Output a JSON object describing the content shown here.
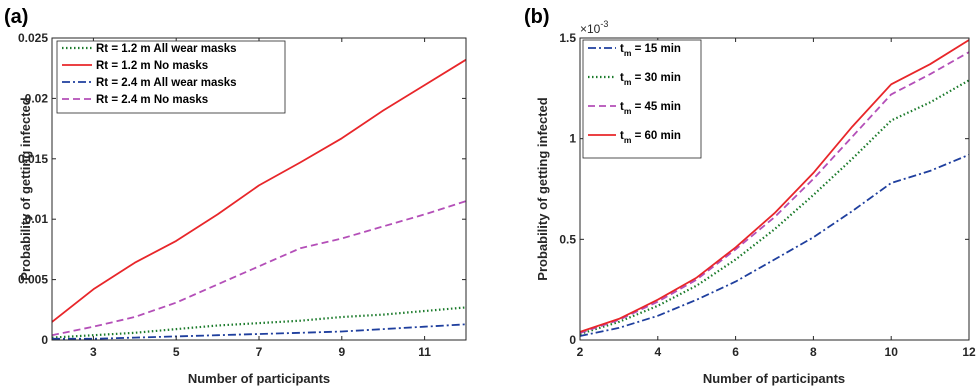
{
  "panels": [
    "(a)",
    "(b)"
  ],
  "chart_data": [
    {
      "type": "line",
      "panel_label": "(a)",
      "xlabel": "Number of participants",
      "ylabel": "Probability of getting infected",
      "xlim": [
        2,
        12
      ],
      "ylim": [
        0,
        0.025
      ],
      "xticks": [
        3,
        5,
        7,
        9,
        11
      ],
      "yticks": [
        0,
        0.005,
        0.01,
        0.015,
        0.02,
        0.025
      ],
      "ytick_labels": [
        "0",
        "0.005",
        "0.01",
        "0.015",
        "0.02",
        "0.025"
      ],
      "legend_position": "top-left",
      "x": [
        2,
        3,
        4,
        5,
        6,
        7,
        8,
        9,
        10,
        11,
        12
      ],
      "series": [
        {
          "name": "Rt = 1.2 m All wear masks",
          "color": "#1a7a2a",
          "style": "dotted",
          "values": [
            0.0002,
            0.0004,
            0.0006,
            0.0009,
            0.0012,
            0.0014,
            0.0016,
            0.0019,
            0.0021,
            0.0024,
            0.0027
          ]
        },
        {
          "name": "Rt = 1.2 m No masks",
          "color": "#e8262a",
          "style": "solid",
          "values": [
            0.0015,
            0.0042,
            0.0064,
            0.0082,
            0.0104,
            0.0128,
            0.0147,
            0.0167,
            0.019,
            0.0211,
            0.0232
          ]
        },
        {
          "name": "Rt = 2.4 m All wear masks",
          "color": "#1f3f9e",
          "style": "dashdot",
          "values": [
            0.0001,
            0.0001,
            0.0002,
            0.0003,
            0.0004,
            0.0005,
            0.0006,
            0.0007,
            0.0009,
            0.0011,
            0.0013
          ]
        },
        {
          "name": "Rt = 2.4 m No masks",
          "color": "#b44fb8",
          "style": "dashed",
          "values": [
            0.0004,
            0.0011,
            0.0019,
            0.0031,
            0.0046,
            0.0061,
            0.0076,
            0.0084,
            0.0094,
            0.0104,
            0.0115
          ]
        }
      ]
    },
    {
      "type": "line",
      "panel_label": "(b)",
      "xlabel": "Number of participants",
      "ylabel": "Probability of getting infected",
      "exponent_label": "×10",
      "exponent_power": "-3",
      "xlim": [
        2,
        12
      ],
      "ylim": [
        0,
        1.5
      ],
      "xticks": [
        2,
        4,
        6,
        8,
        10,
        12
      ],
      "yticks": [
        0,
        0.5,
        1,
        1.5
      ],
      "ytick_labels": [
        "0",
        "0.5",
        "1",
        "1.5"
      ],
      "legend_position": "top-left",
      "x": [
        2,
        3,
        4,
        5,
        6,
        7,
        8,
        9,
        10,
        11,
        12
      ],
      "series": [
        {
          "name_main": "t",
          "name_sub": "m",
          "name_rest": " = 15 min",
          "color": "#1f3f9e",
          "style": "dashdot",
          "values": [
            0.02,
            0.06,
            0.12,
            0.2,
            0.29,
            0.4,
            0.51,
            0.64,
            0.78,
            0.84,
            0.92
          ]
        },
        {
          "name_main": "t",
          "name_sub": "m",
          "name_rest": " = 30 min",
          "color": "#1a7a2a",
          "style": "dotted",
          "values": [
            0.03,
            0.09,
            0.17,
            0.27,
            0.4,
            0.55,
            0.72,
            0.9,
            1.09,
            1.18,
            1.29
          ]
        },
        {
          "name_main": "t",
          "name_sub": "m",
          "name_rest": " = 45 min",
          "color": "#b44fb8",
          "style": "dashed",
          "values": [
            0.035,
            0.1,
            0.19,
            0.3,
            0.45,
            0.61,
            0.8,
            1.01,
            1.22,
            1.32,
            1.43
          ]
        },
        {
          "name_main": "t",
          "name_sub": "m",
          "name_rest": " = 60 min",
          "color": "#e8262a",
          "style": "solid",
          "values": [
            0.04,
            0.105,
            0.2,
            0.31,
            0.46,
            0.63,
            0.83,
            1.06,
            1.27,
            1.37,
            1.49
          ]
        }
      ]
    }
  ]
}
